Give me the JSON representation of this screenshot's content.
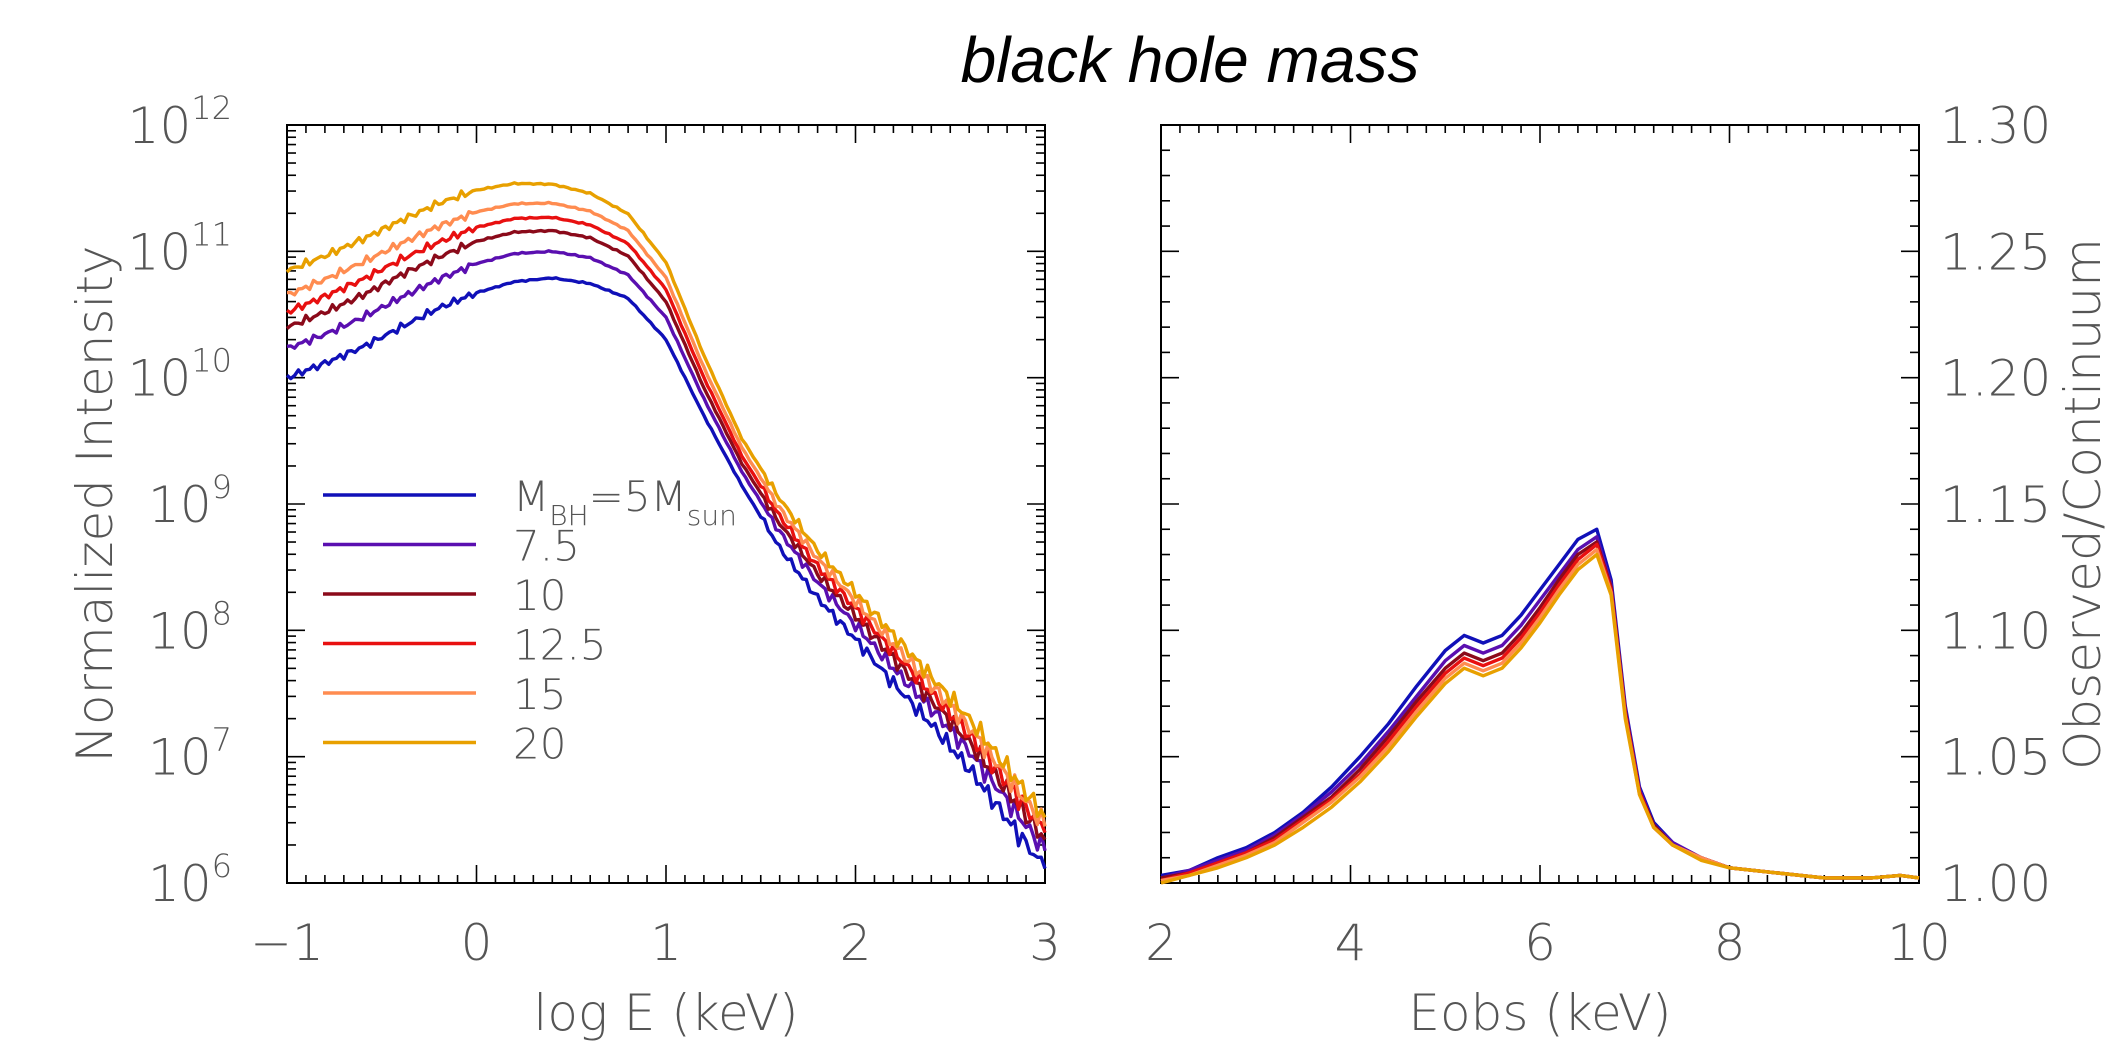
{
  "title": "black hole mass",
  "chart_data": [
    {
      "type": "line",
      "xlabel": "log E (keV)",
      "ylabel": "Normalized Intensity",
      "y_scale": "log",
      "xlim": [
        -1,
        3
      ],
      "ylim": [
        1000000,
        1000000000000
      ],
      "x_ticks": [
        "−1",
        "0",
        "1",
        "2",
        "3"
      ],
      "y_ticks": [
        {
          "base": "10",
          "exp": "6"
        },
        {
          "base": "10",
          "exp": "7"
        },
        {
          "base": "10",
          "exp": "8"
        },
        {
          "base": "10",
          "exp": "9"
        },
        {
          "base": "10",
          "exp": "10"
        },
        {
          "base": "10",
          "exp": "11"
        },
        {
          "base": "10",
          "exp": "12"
        }
      ],
      "legend": {
        "position": "center-left",
        "first_label": {
          "main": "M",
          "sub": "BH",
          "mid": "=5M",
          "sub2": "sun"
        },
        "labels": [
          "7.5",
          "10",
          "12.5",
          "15",
          "20"
        ]
      },
      "x": [
        -1.0,
        -0.8,
        -0.6,
        -0.4,
        -0.2,
        0.0,
        0.2,
        0.4,
        0.6,
        0.8,
        1.0,
        1.2,
        1.4,
        1.6,
        1.8,
        2.0,
        2.2,
        2.4,
        2.6,
        2.8,
        3.0
      ],
      "series": [
        {
          "color": "#1010b8",
          "values": [
            10000000000.0,
            13000000000.0,
            17500000000.0,
            25000000000.0,
            35500000000.0,
            47000000000.0,
            57500000000.0,
            61600000000.0,
            55600000000.0,
            42500000000.0,
            20000000000.0,
            5000000000.0,
            1400000000.0,
            450000000.0,
            180000000.0,
            85000000.0,
            38000000.0,
            18000000.0,
            8000000.0,
            3200000.0,
            1300000.0
          ]
        },
        {
          "color": "#5a0fb0",
          "values": [
            17000000000.0,
            22000000000.0,
            30000000000.0,
            43000000000.0,
            60000000000.0,
            80000000000.0,
            96000000000.0,
            100000000000.0,
            89000000000.0,
            65000000000.0,
            30000000000.0,
            6800000000.0,
            1800000000.0,
            600000000.0,
            240000000.0,
            110000000.0,
            50000000.0,
            24000000.0,
            11000000.0,
            4500000.0,
            1800000.0
          ]
        },
        {
          "color": "#8b0a1a",
          "values": [
            25000000000.0,
            33000000000.0,
            45000000000.0,
            65000000000.0,
            90000000000.0,
            120000000000.0,
            142000000000.0,
            146000000000.0,
            128000000000.0,
            92000000000.0,
            40000000000.0,
            8300000000.0,
            2100000000.0,
            700000000.0,
            280000000.0,
            130000000.0,
            60000000.0,
            28000000.0,
            13000000.0,
            5400000.0,
            2200000.0
          ]
        },
        {
          "color": "#e81010",
          "values": [
            33000000000.0,
            44000000000.0,
            60000000000.0,
            86000000000.0,
            118000000000.0,
            155000000000.0,
            182000000000.0,
            186000000000.0,
            162000000000.0,
            115000000000.0,
            50000000000.0,
            10000000000.0,
            2400000000.0,
            800000000.0,
            320000000.0,
            150000000.0,
            68000000.0,
            32000000.0,
            15000000.0,
            6200000.0,
            2500000.0
          ]
        },
        {
          "color": "#ff8c50",
          "values": [
            45000000000.0,
            60000000000.0,
            82000000000.0,
            115000000000.0,
            158000000000.0,
            205000000000.0,
            238000000000.0,
            241000000000.0,
            208000000000.0,
            146000000000.0,
            62000000000.0,
            12000000000.0,
            2800000000.0,
            920000000.0,
            370000000.0,
            170000000.0,
            78000000.0,
            37000000.0,
            17000000.0,
            7000000.0,
            2800000.0
          ]
        },
        {
          "color": "#e8a000",
          "values": [
            70000000000.0,
            92000000000.0,
            125000000000.0,
            175000000000.0,
            240000000000.0,
            305000000000.0,
            345000000000.0,
            340000000000.0,
            288000000000.0,
            198000000000.0,
            82000000000.0,
            15000000000.0,
            3300000000.0,
            1100000000.0,
            430000000.0,
            200000000.0,
            92000000.0,
            43000000.0,
            20000000.0,
            8200000.0,
            3300000.0
          ]
        }
      ]
    },
    {
      "type": "line",
      "xlabel": "Eobs (keV)",
      "ylabel": "Observed/Continuum",
      "xlim": [
        2,
        10
      ],
      "ylim": [
        1.0,
        1.3
      ],
      "x_ticks": [
        "2",
        "4",
        "6",
        "8",
        "10"
      ],
      "y_ticks": [
        "1.00",
        "1.05",
        "1.10",
        "1.15",
        "1.20",
        "1.25",
        "1.30"
      ],
      "x": [
        2.0,
        2.3,
        2.6,
        2.9,
        3.2,
        3.5,
        3.8,
        4.1,
        4.4,
        4.7,
        5.0,
        5.2,
        5.4,
        5.6,
        5.8,
        6.0,
        6.2,
        6.4,
        6.6,
        6.75,
        6.9,
        7.05,
        7.2,
        7.4,
        7.7,
        8.0,
        8.5,
        9.0,
        9.5,
        9.8,
        10.0
      ],
      "series": [
        {
          "color": "#1010b8",
          "values": [
            1.003,
            1.005,
            1.01,
            1.014,
            1.02,
            1.028,
            1.038,
            1.05,
            1.063,
            1.078,
            1.092,
            1.098,
            1.095,
            1.098,
            1.106,
            1.116,
            1.126,
            1.136,
            1.14,
            1.12,
            1.07,
            1.038,
            1.024,
            1.016,
            1.01,
            1.006,
            1.004,
            1.002,
            1.002,
            1.003,
            1.002
          ]
        },
        {
          "color": "#5a0fb0",
          "values": [
            1.002,
            1.005,
            1.009,
            1.013,
            1.019,
            1.027,
            1.036,
            1.047,
            1.06,
            1.074,
            1.088,
            1.094,
            1.091,
            1.094,
            1.102,
            1.112,
            1.122,
            1.132,
            1.137,
            1.118,
            1.069,
            1.037,
            1.023,
            1.016,
            1.01,
            1.006,
            1.004,
            1.002,
            1.002,
            1.003,
            1.002
          ]
        },
        {
          "color": "#8b0a1a",
          "values": [
            1.002,
            1.004,
            1.008,
            1.012,
            1.018,
            1.026,
            1.034,
            1.045,
            1.058,
            1.072,
            1.085,
            1.091,
            1.088,
            1.091,
            1.099,
            1.109,
            1.12,
            1.13,
            1.135,
            1.117,
            1.068,
            1.036,
            1.023,
            1.015,
            1.01,
            1.006,
            1.004,
            1.002,
            1.002,
            1.003,
            1.002
          ]
        },
        {
          "color": "#e81010",
          "values": [
            1.001,
            1.004,
            1.008,
            1.012,
            1.017,
            1.025,
            1.033,
            1.043,
            1.056,
            1.07,
            1.083,
            1.089,
            1.086,
            1.089,
            1.097,
            1.107,
            1.118,
            1.128,
            1.134,
            1.116,
            1.067,
            1.036,
            1.022,
            1.015,
            1.01,
            1.006,
            1.004,
            1.002,
            1.002,
            1.003,
            1.002
          ]
        },
        {
          "color": "#ff8c50",
          "values": [
            1.001,
            1.003,
            1.007,
            1.011,
            1.016,
            1.024,
            1.032,
            1.042,
            1.054,
            1.068,
            1.081,
            1.087,
            1.084,
            1.087,
            1.095,
            1.105,
            1.116,
            1.126,
            1.132,
            1.115,
            1.066,
            1.035,
            1.022,
            1.015,
            1.01,
            1.006,
            1.004,
            1.002,
            1.002,
            1.003,
            1.002
          ]
        },
        {
          "color": "#e8a000",
          "values": [
            1.0,
            1.003,
            1.006,
            1.01,
            1.015,
            1.022,
            1.03,
            1.04,
            1.052,
            1.066,
            1.079,
            1.085,
            1.082,
            1.085,
            1.093,
            1.103,
            1.114,
            1.124,
            1.13,
            1.114,
            1.065,
            1.035,
            1.022,
            1.015,
            1.009,
            1.006,
            1.004,
            1.002,
            1.002,
            1.003,
            1.002
          ]
        }
      ]
    }
  ]
}
